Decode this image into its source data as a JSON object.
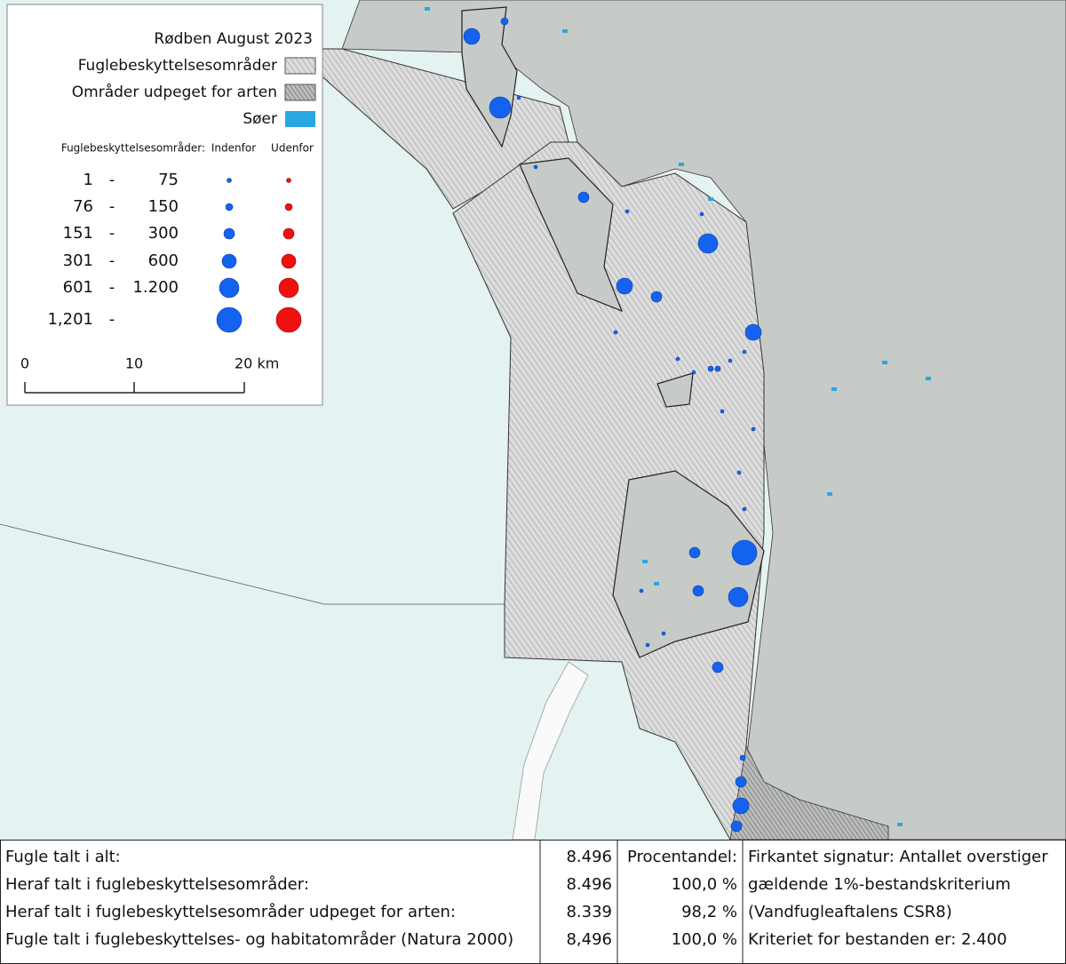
{
  "legend": {
    "title": "Rødben August 2023",
    "items": [
      "Fuglebeskyttelsesområder",
      "Områder udpeget for arten",
      "Søer"
    ],
    "size_header": "Fuglebeskyttelsesområder:",
    "col_inside": "Indenfor",
    "col_outside": "Udenfor",
    "classes": [
      {
        "from": "1",
        "dash": "-",
        "to": "75"
      },
      {
        "from": "76",
        "dash": "-",
        "to": "150"
      },
      {
        "from": "151",
        "dash": "-",
        "to": "300"
      },
      {
        "from": "301",
        "dash": "-",
        "to": "600"
      },
      {
        "from": "601",
        "dash": "-",
        "to": "1.200"
      },
      {
        "from": "1,201",
        "dash": "-"
      }
    ],
    "scale": [
      "0",
      "10",
      "20 km"
    ]
  },
  "table": {
    "rows": [
      [
        "Fugle talt i alt:",
        "8.496",
        "Procentandel:",
        "Firkantet signatur: Antallet overstiger"
      ],
      [
        "Heraf talt i fuglebeskyttelsesområder:",
        "8.496",
        "100,0 %",
        "gældende 1%-bestandskriterium"
      ],
      [
        "Heraf talt i fuglebeskyttelsesområder udpeget for arten:",
        "8.339",
        "98,2 %",
        "(Vandfugleaftalens CSR8)"
      ],
      [
        "Fugle talt i fuglebeskyttelses- og habitatområder (Natura 2000)",
        "8,496",
        "100,0 %",
        "Kriteriet for bestanden er: 2.400"
      ]
    ]
  }
}
